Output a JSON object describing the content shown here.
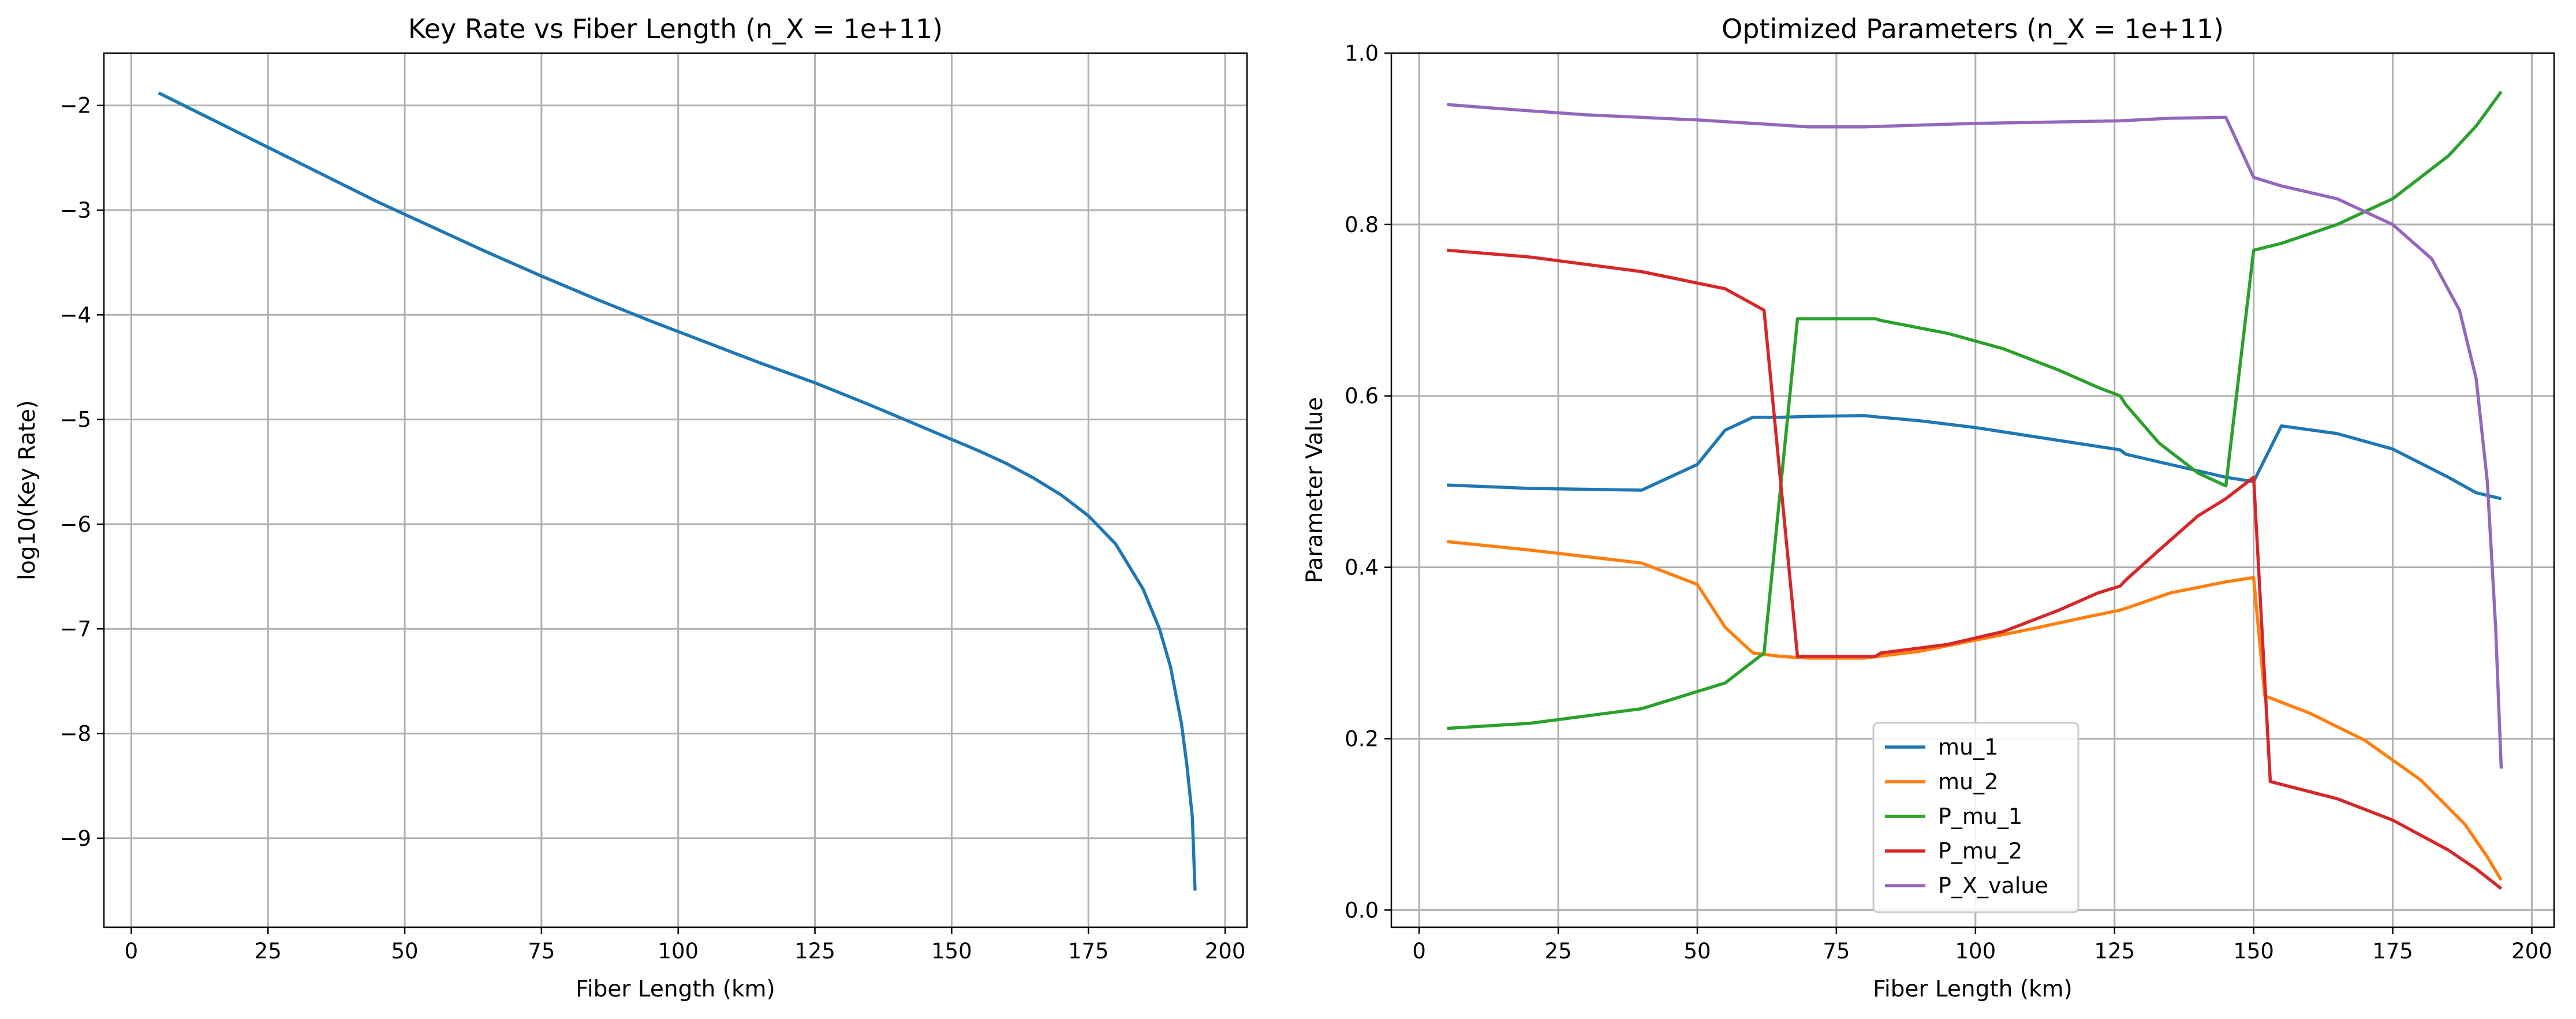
{
  "chart_data": [
    {
      "type": "line",
      "title": "Key Rate vs Fiber Length (n_X = 1e+11)",
      "xlabel": "Fiber Length (km)",
      "ylabel": "log10(Key Rate)",
      "xlim": [
        -5,
        204
      ],
      "ylim": [
        -9.85,
        -1.5
      ],
      "xticks": [
        0,
        25,
        50,
        75,
        100,
        125,
        150,
        175,
        200
      ],
      "yticks": [
        -9,
        -8,
        -7,
        -6,
        -5,
        -4,
        -3,
        -2
      ],
      "grid": true,
      "series": [
        {
          "color": "#1f77b4",
          "x": [
            5,
            15,
            25,
            35,
            45,
            55,
            65,
            75,
            85,
            95,
            105,
            115,
            125,
            135,
            145,
            150,
            155,
            160,
            165,
            170,
            175,
            180,
            185,
            188,
            190,
            192,
            193,
            194,
            194.5
          ],
          "y": [
            -1.88,
            -2.14,
            -2.4,
            -2.66,
            -2.92,
            -3.16,
            -3.4,
            -3.63,
            -3.85,
            -4.06,
            -4.26,
            -4.46,
            -4.65,
            -4.86,
            -5.08,
            -5.19,
            -5.3,
            -5.42,
            -5.56,
            -5.72,
            -5.92,
            -6.19,
            -6.62,
            -7.0,
            -7.36,
            -7.9,
            -8.3,
            -8.8,
            -9.5
          ]
        }
      ]
    },
    {
      "type": "line",
      "title": "Optimized Parameters (n_X = 1e+11)",
      "xlabel": "Fiber Length (km)",
      "ylabel": "Parameter Value",
      "xlim": [
        -5,
        204
      ],
      "ylim": [
        -0.02,
        1.0
      ],
      "xticks": [
        0,
        25,
        50,
        75,
        100,
        125,
        150,
        175,
        200
      ],
      "yticks": [
        0.0,
        0.2,
        0.4,
        0.6,
        0.8,
        1.0
      ],
      "grid": true,
      "legend": "lower-center",
      "series": [
        {
          "name": "mu_1",
          "color": "#1f77b4",
          "x": [
            5,
            20,
            40,
            50,
            55,
            60,
            65,
            70,
            80,
            83,
            90,
            100,
            110,
            120,
            126,
            127,
            135,
            145,
            150,
            155,
            165,
            175,
            185,
            190,
            194.5
          ],
          "y": [
            0.496,
            0.492,
            0.49,
            0.52,
            0.56,
            0.575,
            0.575,
            0.576,
            0.577,
            0.575,
            0.571,
            0.563,
            0.553,
            0.543,
            0.537,
            0.532,
            0.52,
            0.505,
            0.5,
            0.565,
            0.556,
            0.538,
            0.505,
            0.487,
            0.48
          ]
        },
        {
          "name": "mu_2",
          "color": "#ff7f0e",
          "x": [
            5,
            20,
            40,
            50,
            55,
            60,
            65,
            70,
            80,
            90,
            100,
            110,
            120,
            126,
            127,
            135,
            145,
            150,
            152,
            160,
            170,
            180,
            188,
            192,
            194.5
          ],
          "y": [
            0.43,
            0.42,
            0.405,
            0.38,
            0.33,
            0.3,
            0.296,
            0.294,
            0.294,
            0.302,
            0.315,
            0.328,
            0.342,
            0.35,
            0.352,
            0.37,
            0.383,
            0.388,
            0.25,
            0.23,
            0.198,
            0.152,
            0.1,
            0.062,
            0.035
          ]
        },
        {
          "name": "P_mu_1",
          "color": "#2ca02c",
          "x": [
            5,
            20,
            40,
            55,
            62,
            68,
            82,
            83,
            95,
            105,
            115,
            122,
            126,
            127,
            133,
            140,
            145,
            150,
            155,
            165,
            175,
            185,
            190,
            194.5
          ],
          "y": [
            0.212,
            0.218,
            0.235,
            0.265,
            0.3,
            0.69,
            0.69,
            0.688,
            0.673,
            0.655,
            0.63,
            0.61,
            0.6,
            0.59,
            0.545,
            0.51,
            0.495,
            0.77,
            0.778,
            0.8,
            0.83,
            0.88,
            0.915,
            0.955
          ]
        },
        {
          "name": "P_mu_2",
          "color": "#d62728",
          "x": [
            5,
            20,
            40,
            55,
            62,
            68,
            82,
            83,
            95,
            105,
            115,
            122,
            126,
            127,
            133,
            140,
            145,
            150,
            153,
            165,
            175,
            185,
            190,
            194.5
          ],
          "y": [
            0.77,
            0.762,
            0.745,
            0.725,
            0.7,
            0.296,
            0.296,
            0.3,
            0.31,
            0.325,
            0.35,
            0.37,
            0.378,
            0.385,
            0.42,
            0.46,
            0.48,
            0.505,
            0.15,
            0.13,
            0.105,
            0.07,
            0.048,
            0.025
          ]
        },
        {
          "name": "P_X_value",
          "color": "#9467bd",
          "x": [
            5,
            15,
            30,
            50,
            60,
            70,
            80,
            100,
            126,
            135,
            145,
            150,
            155,
            165,
            175,
            182,
            187,
            190,
            192,
            193.5,
            194.5
          ],
          "y": [
            0.94,
            0.935,
            0.928,
            0.922,
            0.918,
            0.914,
            0.914,
            0.918,
            0.921,
            0.924,
            0.925,
            0.855,
            0.845,
            0.83,
            0.8,
            0.76,
            0.7,
            0.62,
            0.5,
            0.33,
            0.165
          ]
        }
      ]
    }
  ]
}
